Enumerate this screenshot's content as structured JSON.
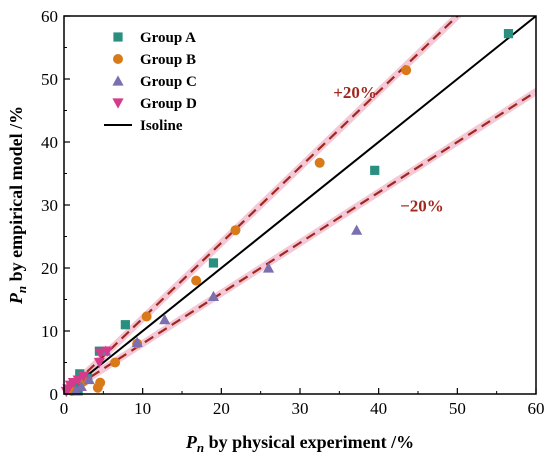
{
  "chart_data": {
    "type": "scatter",
    "xlabel_var": "P",
    "xlabel_sub": "n",
    "xlabel_text": " by physical experiment /%",
    "ylabel_var": "P",
    "ylabel_sub": "n",
    "ylabel_text": " by empirical model /%",
    "xlim": [
      0,
      60
    ],
    "ylim": [
      0,
      60
    ],
    "xticks": [
      "0",
      "10",
      "20",
      "30",
      "40",
      "50",
      "60"
    ],
    "yticks": [
      "0",
      "10",
      "20",
      "30",
      "40",
      "50",
      "60"
    ],
    "legend_position": "top-left",
    "series": [
      {
        "name": "Group A",
        "marker": "square",
        "color": "#2a8f7f",
        "points": [
          [
            56.5,
            57.2
          ],
          [
            39.5,
            35.5
          ],
          [
            19.0,
            20.8
          ],
          [
            7.8,
            11.0
          ],
          [
            4.5,
            6.8
          ],
          [
            2.0,
            3.2
          ],
          [
            1.2,
            1.5
          ],
          [
            0.5,
            0.6
          ],
          [
            3.0,
            2.5
          ],
          [
            1.8,
            0.5
          ]
        ]
      },
      {
        "name": "Group B",
        "marker": "circle",
        "color": "#d97a1a",
        "points": [
          [
            43.5,
            51.4
          ],
          [
            32.5,
            36.7
          ],
          [
            21.8,
            26.0
          ],
          [
            16.8,
            18.0
          ],
          [
            10.5,
            12.3
          ],
          [
            9.3,
            8.0
          ],
          [
            6.5,
            5.0
          ],
          [
            4.6,
            1.8
          ],
          [
            4.3,
            1.0
          ],
          [
            2.5,
            2.0
          ],
          [
            1.0,
            0.5
          ]
        ]
      },
      {
        "name": "Group C",
        "marker": "triangle",
        "color": "#7b6fb0",
        "points": [
          [
            37.2,
            26.0
          ],
          [
            26.0,
            20.0
          ],
          [
            19.0,
            15.5
          ],
          [
            12.8,
            11.8
          ],
          [
            9.3,
            8.2
          ],
          [
            5.3,
            6.8
          ],
          [
            3.2,
            2.3
          ],
          [
            2.2,
            1.2
          ],
          [
            1.5,
            0.5
          ]
        ]
      },
      {
        "name": "Group D",
        "marker": "triangle-down",
        "color": "#d63a8a",
        "points": [
          [
            5.5,
            6.8
          ],
          [
            4.6,
            6.5
          ],
          [
            4.5,
            5.0
          ],
          [
            2.5,
            2.8
          ],
          [
            1.8,
            2.2
          ],
          [
            1.2,
            1.8
          ],
          [
            0.8,
            1.4
          ],
          [
            0.5,
            0.8
          ],
          [
            0.3,
            0.4
          ]
        ]
      }
    ],
    "isoline": {
      "name": "Isoline",
      "color": "#000000"
    },
    "bands": [
      {
        "label": "+20%",
        "factor": 1.2,
        "color": "#a0281e",
        "label_x": 37.0,
        "label_y": 47.0
      },
      {
        "label": "−20%",
        "factor": 0.8,
        "color": "#a0281e",
        "label_x": 45.5,
        "label_y": 29.0
      }
    ]
  }
}
